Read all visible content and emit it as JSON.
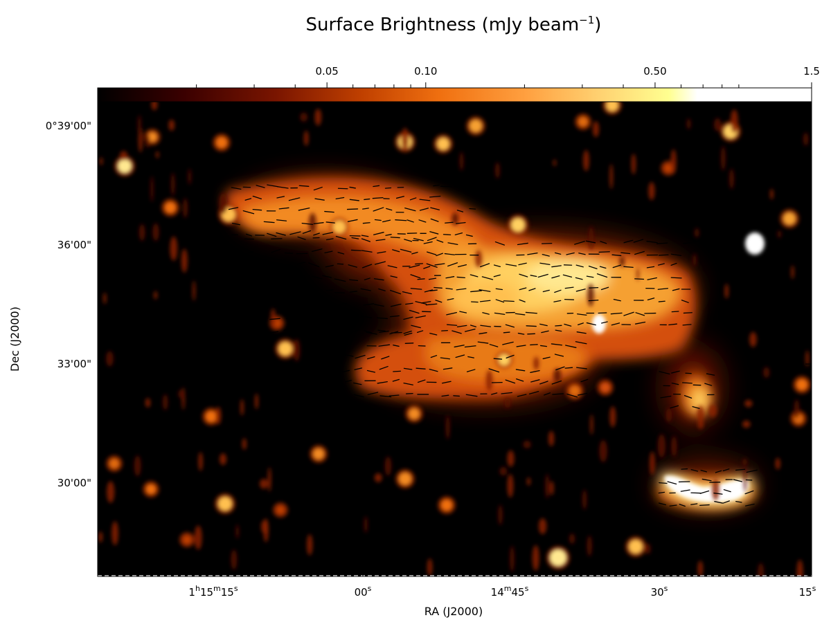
{
  "figure": {
    "colorbar_title": "Surface Brightness (mJy beam",
    "colorbar_title_exponent": "−1",
    "colorbar_title_close": ")",
    "colorbar_scale": "log",
    "colorbar_range": [
      0.01,
      1.5
    ],
    "colorbar_ticks": [
      {
        "label": "0.05",
        "value": 0.05
      },
      {
        "label": "0.10",
        "value": 0.1
      },
      {
        "label": "0.50",
        "value": 0.5
      },
      {
        "label": "1.5",
        "value": 1.5
      }
    ],
    "colormap": [
      "#000000",
      "#3a0000",
      "#7a1500",
      "#c04000",
      "#f07010",
      "#ffa040",
      "#ffd070",
      "#ffff90",
      "#ffffff"
    ],
    "xlabel": "RA (J2000)",
    "ylabel": "Dec (J2000)",
    "ra_ticks": [
      {
        "h": "1",
        "hu": "h",
        "m": "15",
        "mu": "m",
        "s": "15",
        "su": "s"
      },
      {
        "h": "",
        "hu": "",
        "m": "",
        "mu": "",
        "s": "00",
        "su": "s"
      },
      {
        "h": "",
        "hu": "",
        "m": "14",
        "mu": "m",
        "s": "45",
        "su": "s"
      },
      {
        "h": "",
        "hu": "",
        "m": "",
        "mu": "",
        "s": "30",
        "su": "s"
      },
      {
        "h": "",
        "hu": "",
        "m": "",
        "mu": "",
        "s": "15",
        "su": "s"
      }
    ],
    "dec_ticks": [
      "0°39'00\"",
      "36'00\"",
      "33'00\"",
      "30'00\""
    ],
    "polarization_vectors": "black",
    "background": "#000000"
  }
}
